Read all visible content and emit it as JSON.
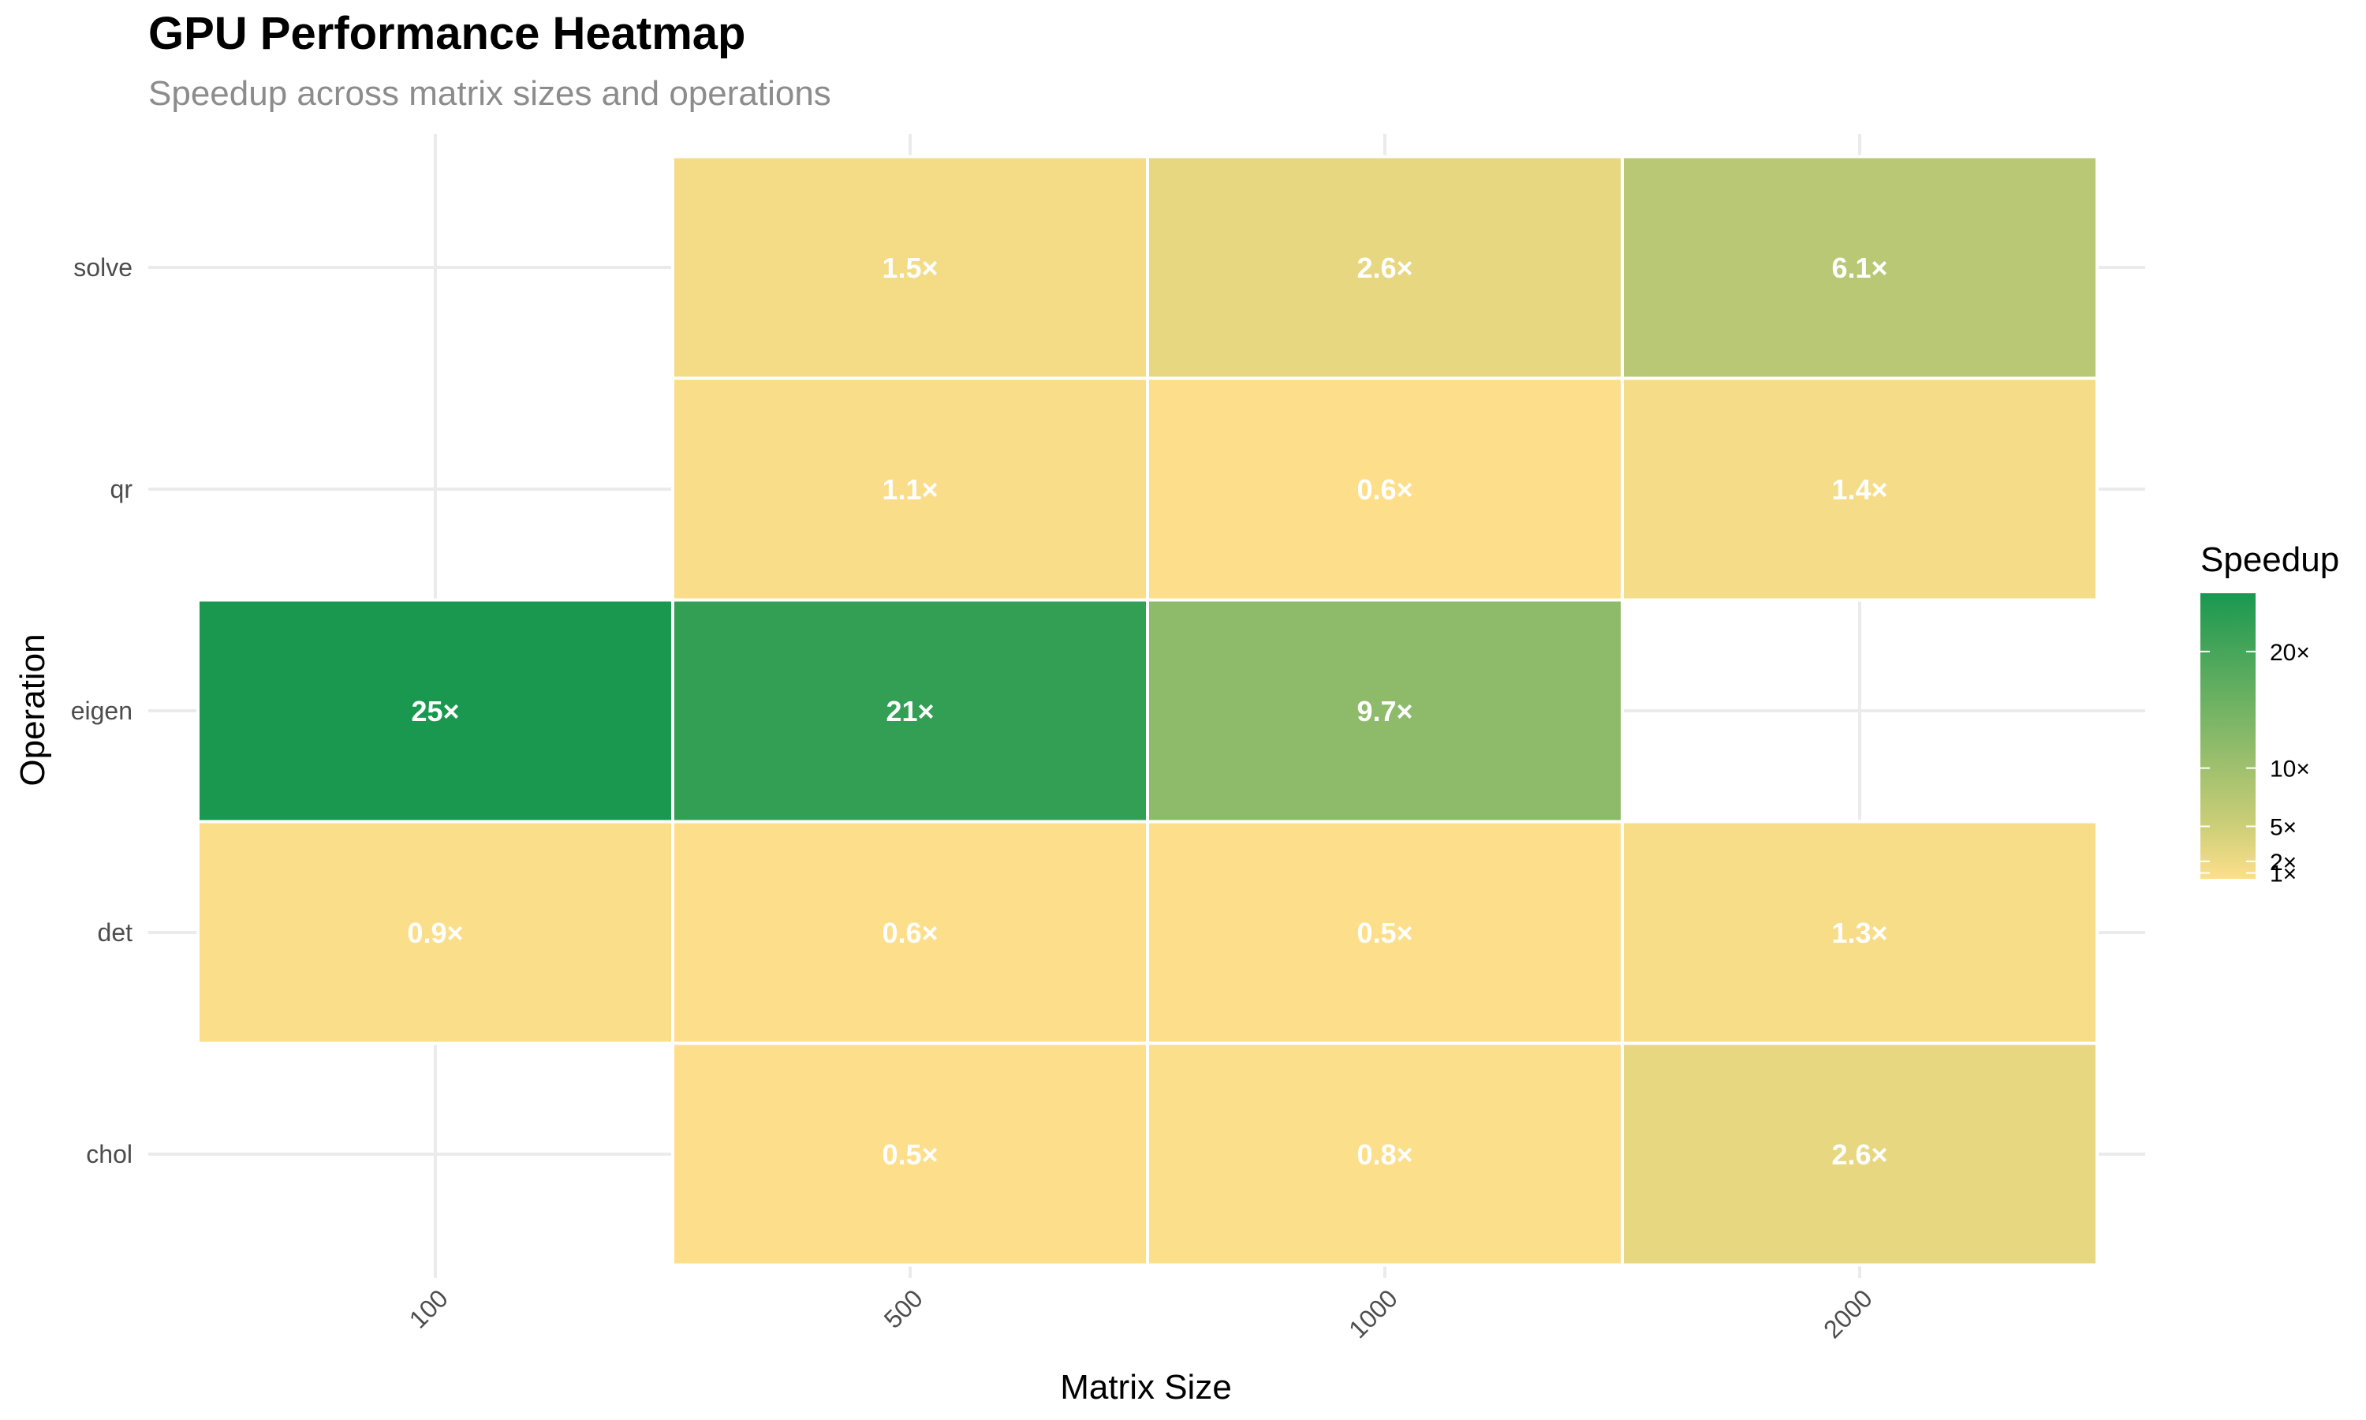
{
  "chart_data": {
    "type": "heatmap",
    "title": "GPU Performance Heatmap",
    "subtitle": "Speedup across matrix sizes and operations",
    "xlabel": "Matrix Size",
    "ylabel": "Operation",
    "x_categories": [
      "100",
      "500",
      "1000",
      "2000"
    ],
    "y_categories": [
      "chol",
      "det",
      "eigen",
      "qr",
      "solve"
    ],
    "cells": [
      {
        "x": "500",
        "y": "solve",
        "value": 1.5,
        "label": "1.5×"
      },
      {
        "x": "1000",
        "y": "solve",
        "value": 2.6,
        "label": "2.6×"
      },
      {
        "x": "2000",
        "y": "solve",
        "value": 6.1,
        "label": "6.1×"
      },
      {
        "x": "500",
        "y": "qr",
        "value": 1.1,
        "label": "1.1×"
      },
      {
        "x": "1000",
        "y": "qr",
        "value": 0.6,
        "label": "0.6×"
      },
      {
        "x": "2000",
        "y": "qr",
        "value": 1.4,
        "label": "1.4×"
      },
      {
        "x": "100",
        "y": "eigen",
        "value": 25,
        "label": "25×"
      },
      {
        "x": "500",
        "y": "eigen",
        "value": 21,
        "label": "21×"
      },
      {
        "x": "1000",
        "y": "eigen",
        "value": 9.7,
        "label": "9.7×"
      },
      {
        "x": "100",
        "y": "det",
        "value": 0.9,
        "label": "0.9×"
      },
      {
        "x": "500",
        "y": "det",
        "value": 0.6,
        "label": "0.6×"
      },
      {
        "x": "1000",
        "y": "det",
        "value": 0.5,
        "label": "0.5×"
      },
      {
        "x": "2000",
        "y": "det",
        "value": 1.3,
        "label": "1.3×"
      },
      {
        "x": "500",
        "y": "chol",
        "value": 0.5,
        "label": "0.5×"
      },
      {
        "x": "1000",
        "y": "chol",
        "value": 0.8,
        "label": "0.8×"
      },
      {
        "x": "2000",
        "y": "chol",
        "value": 2.6,
        "label": "2.6×"
      }
    ],
    "legend": {
      "title": "Speedup",
      "breaks": [
        1,
        2,
        5,
        10,
        20
      ],
      "break_labels": [
        "1×",
        "2×",
        "5×",
        "10×",
        "20×"
      ],
      "range": [
        0.5,
        25
      ],
      "placement": "right"
    },
    "colors": {
      "low": "#FDDF8B",
      "mid": "#D9D27B",
      "high": "#1A9850"
    },
    "grid": true
  }
}
